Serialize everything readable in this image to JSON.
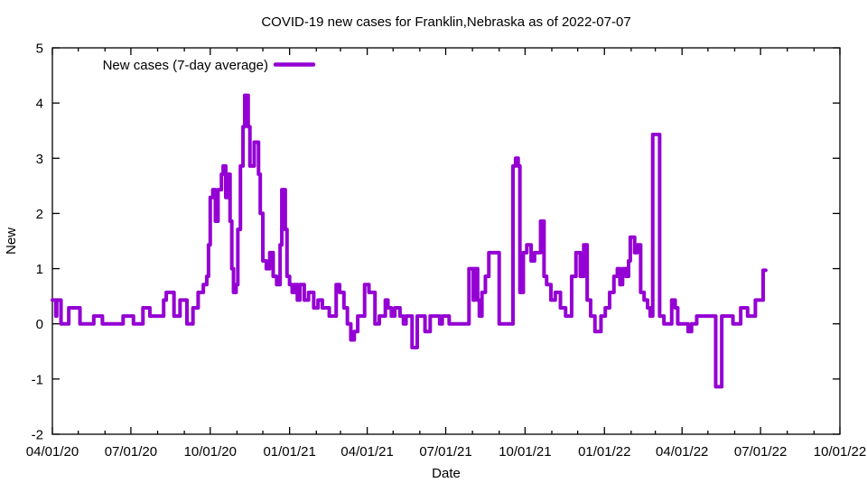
{
  "page": {
    "background": "#ffffff",
    "axis_color": "#000000"
  },
  "chart_data": {
    "type": "line",
    "title": "COVID-19 new cases for Franklin,Nebraska as of 2022-07-07",
    "xlabel": "Date",
    "ylabel": "New",
    "ylim": [
      -2,
      5
    ],
    "y_ticks": [
      "-2",
      "-1",
      "0",
      "1",
      "2",
      "3",
      "4",
      "5"
    ],
    "x_range": [
      "2020-04-01",
      "2022-10-01"
    ],
    "x_ticks": [
      {
        "label": "04/01/20",
        "date": "2020-04-01"
      },
      {
        "label": "07/01/20",
        "date": "2020-07-01"
      },
      {
        "label": "10/01/20",
        "date": "2020-10-01"
      },
      {
        "label": "01/01/21",
        "date": "2021-01-01"
      },
      {
        "label": "04/01/21",
        "date": "2021-04-01"
      },
      {
        "label": "07/01/21",
        "date": "2021-07-01"
      },
      {
        "label": "10/01/21",
        "date": "2021-10-01"
      },
      {
        "label": "01/01/22",
        "date": "2022-01-01"
      },
      {
        "label": "04/01/22",
        "date": "2022-04-01"
      },
      {
        "label": "07/01/22",
        "date": "2022-07-01"
      },
      {
        "label": "10/01/22",
        "date": "2022-10-01"
      }
    ],
    "minor_x_tick_interval": "monthly",
    "grid": "off",
    "legend_position": "top-left-inside",
    "series": [
      {
        "name": "New cases (7-day average)",
        "color": "#9400d3",
        "end_date": "2022-07-07",
        "points": [
          [
            "2020-04-01",
            0.43
          ],
          [
            "2020-04-05",
            0.14
          ],
          [
            "2020-04-06",
            0.43
          ],
          [
            "2020-04-11",
            0.0
          ],
          [
            "2020-04-20",
            0.29
          ],
          [
            "2020-05-03",
            0.0
          ],
          [
            "2020-05-19",
            0.14
          ],
          [
            "2020-05-29",
            0.0
          ],
          [
            "2020-06-22",
            0.14
          ],
          [
            "2020-07-04",
            0.0
          ],
          [
            "2020-07-15",
            0.29
          ],
          [
            "2020-07-23",
            0.14
          ],
          [
            "2020-08-08",
            0.43
          ],
          [
            "2020-08-11",
            0.57
          ],
          [
            "2020-08-20",
            0.14
          ],
          [
            "2020-08-27",
            0.43
          ],
          [
            "2020-09-04",
            0.0
          ],
          [
            "2020-09-11",
            0.29
          ],
          [
            "2020-09-17",
            0.57
          ],
          [
            "2020-09-23",
            0.71
          ],
          [
            "2020-09-27",
            0.86
          ],
          [
            "2020-09-29",
            1.43
          ],
          [
            "2020-10-01",
            2.29
          ],
          [
            "2020-10-04",
            2.43
          ],
          [
            "2020-10-07",
            1.86
          ],
          [
            "2020-10-10",
            2.43
          ],
          [
            "2020-10-14",
            2.71
          ],
          [
            "2020-10-16",
            2.86
          ],
          [
            "2020-10-19",
            2.29
          ],
          [
            "2020-10-21",
            2.71
          ],
          [
            "2020-10-24",
            1.86
          ],
          [
            "2020-10-26",
            1.0
          ],
          [
            "2020-10-28",
            0.57
          ],
          [
            "2020-10-31",
            0.71
          ],
          [
            "2020-11-02",
            1.71
          ],
          [
            "2020-11-05",
            2.86
          ],
          [
            "2020-11-08",
            3.57
          ],
          [
            "2020-11-10",
            4.14
          ],
          [
            "2020-11-14",
            3.57
          ],
          [
            "2020-11-16",
            2.86
          ],
          [
            "2020-11-21",
            3.29
          ],
          [
            "2020-11-26",
            2.71
          ],
          [
            "2020-11-28",
            2.0
          ],
          [
            "2020-12-01",
            1.14
          ],
          [
            "2020-12-05",
            1.0
          ],
          [
            "2020-12-09",
            1.29
          ],
          [
            "2020-12-13",
            0.86
          ],
          [
            "2020-12-17",
            0.71
          ],
          [
            "2020-12-21",
            1.43
          ],
          [
            "2020-12-23",
            2.43
          ],
          [
            "2020-12-27",
            1.71
          ],
          [
            "2020-12-29",
            0.86
          ],
          [
            "2021-01-01",
            0.71
          ],
          [
            "2021-01-04",
            0.57
          ],
          [
            "2021-01-07",
            0.71
          ],
          [
            "2021-01-10",
            0.43
          ],
          [
            "2021-01-13",
            0.71
          ],
          [
            "2021-01-18",
            0.43
          ],
          [
            "2021-01-23",
            0.57
          ],
          [
            "2021-01-29",
            0.29
          ],
          [
            "2021-02-03",
            0.43
          ],
          [
            "2021-02-08",
            0.29
          ],
          [
            "2021-02-16",
            0.14
          ],
          [
            "2021-02-24",
            0.71
          ],
          [
            "2021-02-28",
            0.57
          ],
          [
            "2021-03-05",
            0.29
          ],
          [
            "2021-03-09",
            0.0
          ],
          [
            "2021-03-13",
            -0.29
          ],
          [
            "2021-03-17",
            -0.14
          ],
          [
            "2021-03-21",
            0.14
          ],
          [
            "2021-03-29",
            0.71
          ],
          [
            "2021-04-03",
            0.57
          ],
          [
            "2021-04-10",
            0.0
          ],
          [
            "2021-04-15",
            0.14
          ],
          [
            "2021-04-22",
            0.43
          ],
          [
            "2021-04-25",
            0.29
          ],
          [
            "2021-04-29",
            0.14
          ],
          [
            "2021-05-03",
            0.29
          ],
          [
            "2021-05-09",
            0.14
          ],
          [
            "2021-05-13",
            0.0
          ],
          [
            "2021-05-16",
            0.14
          ],
          [
            "2021-05-23",
            -0.43
          ],
          [
            "2021-05-29",
            0.14
          ],
          [
            "2021-06-07",
            -0.14
          ],
          [
            "2021-06-13",
            0.14
          ],
          [
            "2021-06-24",
            0.0
          ],
          [
            "2021-06-27",
            0.14
          ],
          [
            "2021-07-05",
            0.0
          ],
          [
            "2021-07-28",
            1.0
          ],
          [
            "2021-08-02",
            0.43
          ],
          [
            "2021-08-04",
            1.0
          ],
          [
            "2021-08-07",
            0.43
          ],
          [
            "2021-08-09",
            0.14
          ],
          [
            "2021-08-12",
            0.57
          ],
          [
            "2021-08-16",
            0.86
          ],
          [
            "2021-08-20",
            1.29
          ],
          [
            "2021-09-01",
            0.0
          ],
          [
            "2021-09-17",
            2.86
          ],
          [
            "2021-09-20",
            3.0
          ],
          [
            "2021-09-23",
            2.86
          ],
          [
            "2021-09-25",
            0.57
          ],
          [
            "2021-09-29",
            1.29
          ],
          [
            "2021-10-03",
            1.43
          ],
          [
            "2021-10-08",
            1.14
          ],
          [
            "2021-10-12",
            1.29
          ],
          [
            "2021-10-19",
            1.86
          ],
          [
            "2021-10-23",
            0.86
          ],
          [
            "2021-10-26",
            0.71
          ],
          [
            "2021-10-31",
            0.43
          ],
          [
            "2021-11-05",
            0.57
          ],
          [
            "2021-11-11",
            0.29
          ],
          [
            "2021-11-17",
            0.14
          ],
          [
            "2021-11-24",
            0.86
          ],
          [
            "2021-11-29",
            1.29
          ],
          [
            "2021-12-04",
            0.86
          ],
          [
            "2021-12-08",
            1.43
          ],
          [
            "2021-12-12",
            0.43
          ],
          [
            "2021-12-16",
            0.14
          ],
          [
            "2021-12-21",
            -0.14
          ],
          [
            "2021-12-28",
            0.14
          ],
          [
            "2022-01-02",
            0.29
          ],
          [
            "2022-01-07",
            0.57
          ],
          [
            "2022-01-12",
            0.86
          ],
          [
            "2022-01-16",
            1.0
          ],
          [
            "2022-01-19",
            0.71
          ],
          [
            "2022-01-22",
            1.0
          ],
          [
            "2022-01-26",
            0.86
          ],
          [
            "2022-01-29",
            1.14
          ],
          [
            "2022-01-31",
            1.57
          ],
          [
            "2022-02-05",
            1.29
          ],
          [
            "2022-02-08",
            1.43
          ],
          [
            "2022-02-12",
            0.57
          ],
          [
            "2022-02-16",
            0.43
          ],
          [
            "2022-02-20",
            0.29
          ],
          [
            "2022-02-23",
            0.14
          ],
          [
            "2022-02-26",
            3.43
          ],
          [
            "2022-03-06",
            0.14
          ],
          [
            "2022-03-11",
            0.0
          ],
          [
            "2022-03-20",
            0.43
          ],
          [
            "2022-03-24",
            0.29
          ],
          [
            "2022-03-27",
            0.0
          ],
          [
            "2022-04-08",
            -0.14
          ],
          [
            "2022-04-12",
            0.0
          ],
          [
            "2022-04-18",
            0.14
          ],
          [
            "2022-05-10",
            -1.14
          ],
          [
            "2022-05-17",
            0.14
          ],
          [
            "2022-05-30",
            0.0
          ],
          [
            "2022-06-08",
            0.29
          ],
          [
            "2022-06-16",
            0.14
          ],
          [
            "2022-06-25",
            0.43
          ],
          [
            "2022-07-04",
            0.97
          ]
        ]
      }
    ]
  }
}
